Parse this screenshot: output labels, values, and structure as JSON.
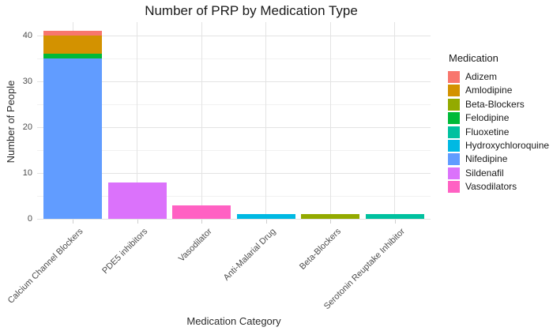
{
  "chart_data": {
    "type": "bar",
    "stacked": true,
    "title": "Number of PRP by Medication Type",
    "xlabel": "Medication Category",
    "ylabel": "Number of People",
    "ylim": [
      0,
      43
    ],
    "yticks_major": [
      0,
      10,
      20,
      30,
      40
    ],
    "yticks_minor": [
      5,
      15,
      25,
      35
    ],
    "grid": "major and minor horizontal, major vertical at category centers",
    "legend_position": "right",
    "categories": [
      "Calcium Channel Blockers",
      "PDE5 inhibitors",
      "Vasodilator",
      "Anti-Malarial Drug",
      "Beta-Blockers",
      "Serotonin Reuptake Inhibitor"
    ],
    "bars": [
      {
        "category": "Calcium Channel Blockers",
        "total": 41,
        "segments": [
          {
            "medication": "Nifedipine",
            "value": 35
          },
          {
            "medication": "Felodipine",
            "value": 1
          },
          {
            "medication": "Amlodipine",
            "value": 4
          },
          {
            "medication": "Adizem",
            "value": 1
          }
        ]
      },
      {
        "category": "PDE5 inhibitors",
        "total": 8,
        "segments": [
          {
            "medication": "Sildenafil",
            "value": 8
          }
        ]
      },
      {
        "category": "Vasodilator",
        "total": 3,
        "segments": [
          {
            "medication": "Vasodilators",
            "value": 3
          }
        ]
      },
      {
        "category": "Anti-Malarial Drug",
        "total": 1,
        "segments": [
          {
            "medication": "Hydroxychloroquine",
            "value": 1
          }
        ]
      },
      {
        "category": "Beta-Blockers",
        "total": 1,
        "segments": [
          {
            "medication": "Beta-Blockers",
            "value": 1
          }
        ]
      },
      {
        "category": "Serotonin Reuptake Inhibitor",
        "total": 1,
        "segments": [
          {
            "medication": "Fluoxetine",
            "value": 1
          }
        ]
      }
    ],
    "legend": {
      "title": "Medication",
      "entries": [
        {
          "label": "Adizem",
          "color": "#F8766D"
        },
        {
          "label": "Amlodipine",
          "color": "#D39200"
        },
        {
          "label": "Beta-Blockers",
          "color": "#93AA00"
        },
        {
          "label": "Felodipine",
          "color": "#00BA38"
        },
        {
          "label": "Fluoxetine",
          "color": "#00C19F"
        },
        {
          "label": "Hydroxychloroquine",
          "color": "#00B9E3"
        },
        {
          "label": "Nifedipine",
          "color": "#619CFF"
        },
        {
          "label": "Sildenafil",
          "color": "#DB72FB"
        },
        {
          "label": "Vasodilators",
          "color": "#FF61C3"
        }
      ]
    },
    "colors": {
      "background": "#FFFFFF",
      "grid_major": "#E3E3E3",
      "grid_minor": "#F1F1F1",
      "tick_mark": "#CFCFCF",
      "axis_text": "#4D4D4D",
      "title_text": "#1A1A1A"
    }
  }
}
